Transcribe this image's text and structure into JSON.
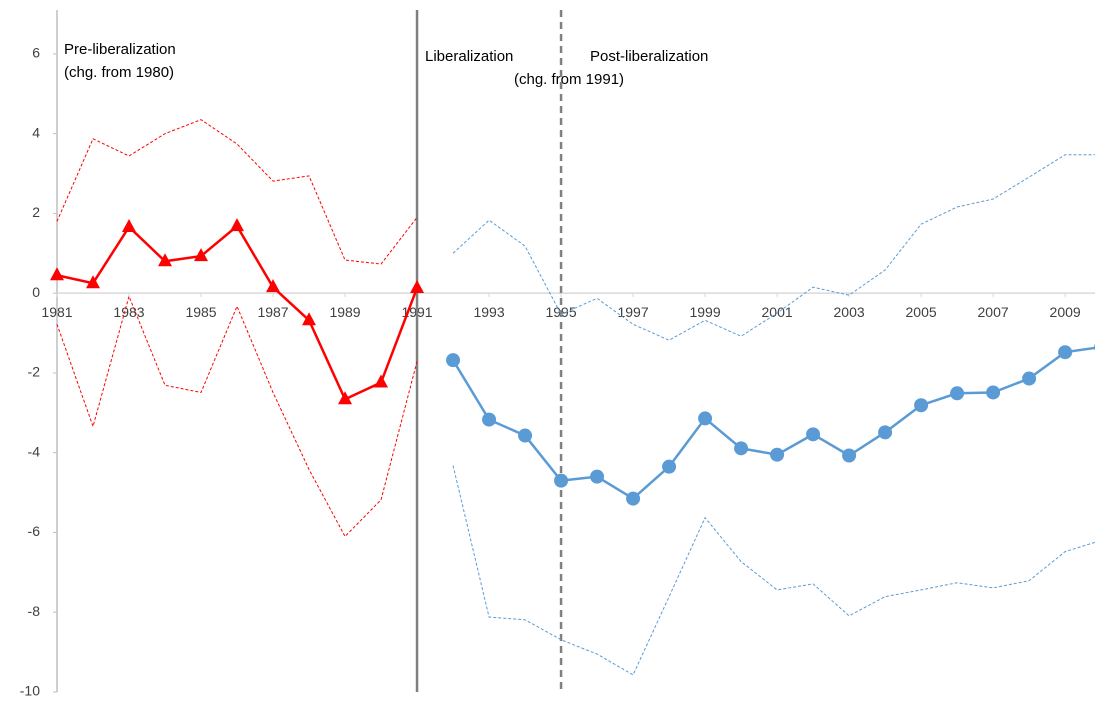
{
  "chart_data": {
    "type": "line",
    "annotations": [
      "Pre-liberalization",
      "(chg. from 1980)",
      "Liberalization",
      "Post-liberalization",
      "(chg. from 1991)"
    ],
    "x": [
      1981,
      1982,
      1983,
      1984,
      1985,
      1986,
      1987,
      1988,
      1989,
      1990,
      1991,
      1992,
      1993,
      1994,
      1995,
      1996,
      1997,
      1998,
      1999,
      2000,
      2001,
      2002,
      2003,
      2004,
      2005,
      2006,
      2007,
      2008,
      2009,
      2010
    ],
    "xlim": [
      1981,
      2009.83
    ],
    "xticks": [
      1981,
      1983,
      1985,
      1987,
      1989,
      1991,
      1993,
      1995,
      1997,
      1999,
      2001,
      2003,
      2005,
      2007,
      2009
    ],
    "ylim": [
      -10,
      7.1
    ],
    "yticks": [
      -10,
      -8,
      -6,
      -4,
      -2,
      0,
      2,
      4,
      6
    ],
    "grid": false,
    "vlines": [
      {
        "x": 1991,
        "style": "solid"
      },
      {
        "x": 1995,
        "style": "dashed"
      }
    ],
    "series": [
      {
        "color": "#ff0000",
        "marker": "triangle",
        "dashed": false,
        "values": [
          0.45,
          0.25,
          1.66,
          0.8,
          0.93,
          1.68,
          0.15,
          -0.68,
          -2.66,
          -2.24,
          0.13,
          null,
          null,
          null,
          null,
          null,
          null,
          null,
          null,
          null,
          null,
          null,
          null,
          null,
          null,
          null,
          null,
          null,
          null,
          null
        ]
      },
      {
        "color": "#ff0000",
        "marker": "none",
        "dashed": true,
        "values": [
          1.8,
          3.87,
          3.44,
          4.0,
          4.35,
          3.74,
          2.81,
          2.94,
          0.83,
          0.73,
          1.9,
          null,
          null,
          null,
          null,
          null,
          null,
          null,
          null,
          null,
          null,
          null,
          null,
          null,
          null,
          null,
          null,
          null,
          null,
          null
        ]
      },
      {
        "color": "#ff0000",
        "marker": "none",
        "dashed": true,
        "values": [
          -0.78,
          -3.34,
          -0.08,
          -2.31,
          -2.49,
          -0.33,
          -2.49,
          -4.42,
          -6.1,
          -5.18,
          -1.71,
          null,
          null,
          null,
          null,
          null,
          null,
          null,
          null,
          null,
          null,
          null,
          null,
          null,
          null,
          null,
          null,
          null,
          null,
          null
        ]
      },
      {
        "color": "#5b9bd5",
        "marker": "circle",
        "dashed": false,
        "values": [
          null,
          null,
          null,
          null,
          null,
          null,
          null,
          null,
          null,
          null,
          null,
          -1.68,
          -3.17,
          -3.57,
          -4.7,
          -4.6,
          -5.15,
          -4.35,
          -3.14,
          -3.89,
          -4.05,
          -3.54,
          -4.07,
          -3.49,
          -2.81,
          -2.51,
          -2.49,
          -2.14,
          -1.48,
          -1.35
        ]
      },
      {
        "color": "#5b9bd5",
        "marker": "none",
        "dashed": true,
        "values": [
          null,
          null,
          null,
          null,
          null,
          null,
          null,
          null,
          null,
          null,
          null,
          1.0,
          1.83,
          1.18,
          -0.53,
          -0.13,
          -0.78,
          -1.18,
          -0.68,
          -1.08,
          -0.5,
          0.15,
          -0.05,
          0.58,
          1.73,
          2.16,
          2.36,
          2.91,
          3.47,
          3.47
        ]
      },
      {
        "color": "#5b9bd5",
        "marker": "none",
        "dashed": true,
        "values": [
          null,
          null,
          null,
          null,
          null,
          null,
          null,
          null,
          null,
          null,
          null,
          -4.32,
          -8.12,
          -8.19,
          -8.69,
          -9.05,
          -9.57,
          -7.61,
          -5.63,
          -6.73,
          -7.44,
          -7.29,
          -8.09,
          -7.61,
          -7.44,
          -7.26,
          -7.39,
          -7.21,
          -6.48,
          -6.2
        ]
      }
    ]
  }
}
